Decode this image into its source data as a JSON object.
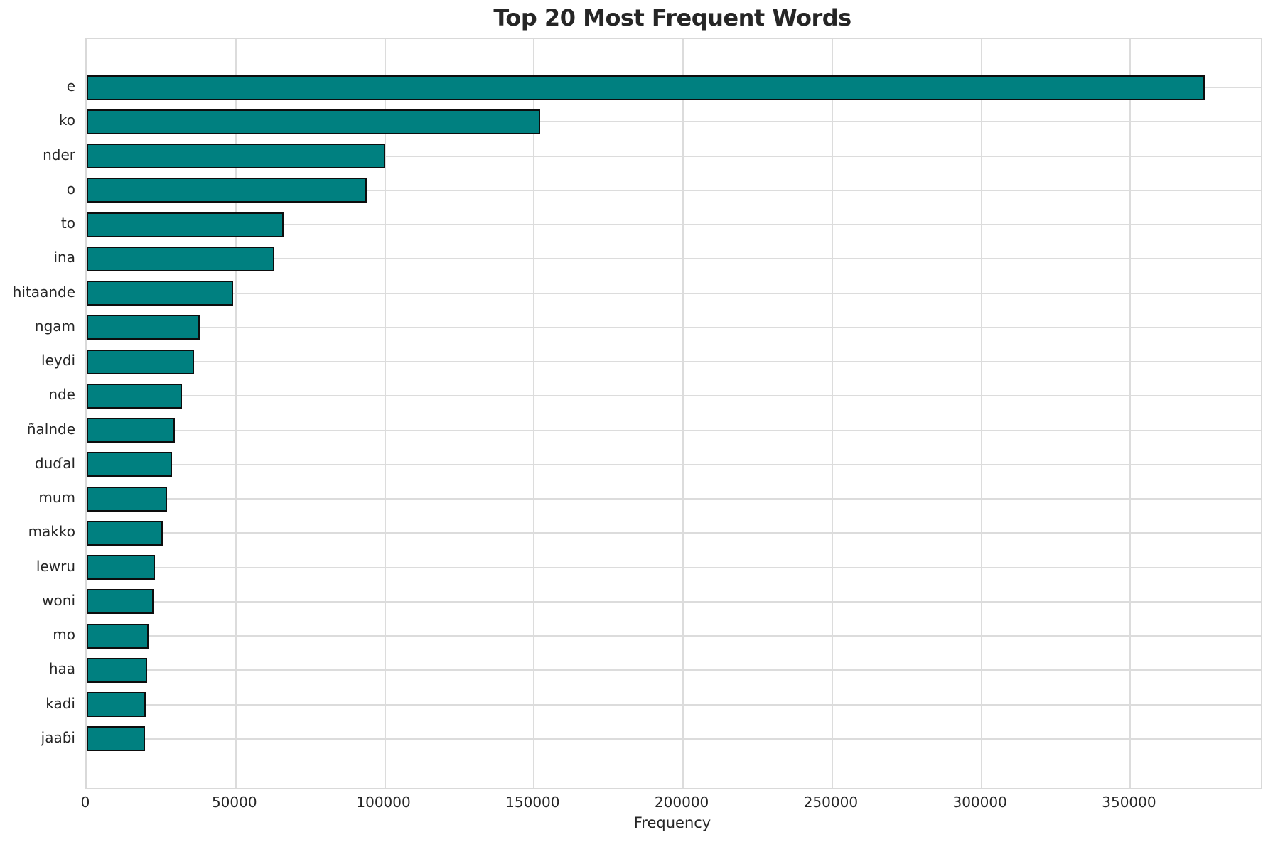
{
  "chart_data": {
    "type": "bar",
    "orientation": "horizontal",
    "title": "Top 20 Most Frequent Words",
    "xlabel": "Frequency",
    "ylabel": "",
    "categories": [
      "e",
      "ko",
      "nder",
      "o",
      "to",
      "ina",
      "hitaande",
      "ngam",
      "leydi",
      "nde",
      "ñalnde",
      "duɗal",
      "mum",
      "makko",
      "lewru",
      "woni",
      "mo",
      "haa",
      "kadi",
      "jaaɓi"
    ],
    "values": [
      375000,
      152000,
      100000,
      94000,
      66000,
      63000,
      49000,
      38000,
      36000,
      32000,
      29500,
      28500,
      27000,
      25500,
      23000,
      22400,
      20700,
      20300,
      19800,
      19500
    ],
    "xlim": [
      0,
      393750
    ],
    "xticks": [
      0,
      50000,
      100000,
      150000,
      200000,
      250000,
      300000,
      350000
    ],
    "grid": true,
    "legend": "none",
    "bar_color": "#008080",
    "bar_edge_color": "#0d0d0d",
    "grid_color": "#dcdcdc",
    "spine_color": "#d9d9d9",
    "text_color": "#262626",
    "background_color": "#ffffff"
  }
}
